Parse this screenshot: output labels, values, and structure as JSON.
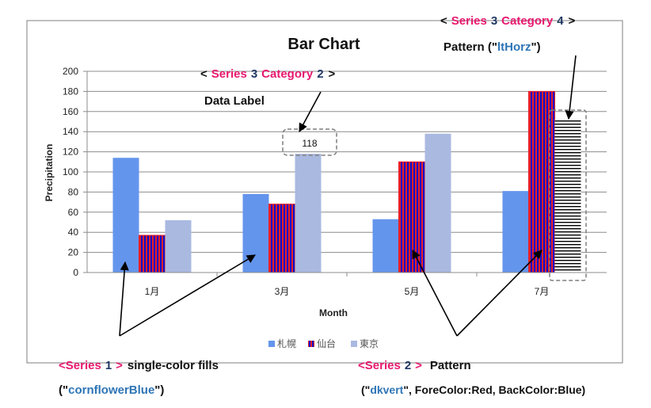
{
  "chart_data": {
    "type": "bar",
    "title": "Bar Chart",
    "xlabel": "Month",
    "ylabel": "Precipitation",
    "categories": [
      "1月",
      "3月",
      "5月",
      "7月"
    ],
    "ylim": [
      0,
      200
    ],
    "yticks": [
      0,
      20,
      40,
      60,
      80,
      100,
      120,
      140,
      160,
      180,
      200
    ],
    "grid": true,
    "legend_position": "bottom",
    "series": [
      {
        "name": "札幌",
        "values": [
          114,
          78,
          53,
          81
        ],
        "fill": "cornflowerBlue",
        "color": "#6495ED"
      },
      {
        "name": "仙台",
        "values": [
          37,
          68,
          110,
          180
        ],
        "fill": "pattern dkvert",
        "fore_color": "#FF0000",
        "back_color": "#0000FF"
      },
      {
        "name": "東京",
        "values": [
          52,
          118,
          138,
          152
        ],
        "fill": "solid",
        "color": "#AAB9E0"
      }
    ],
    "data_labels": [
      {
        "series": 3,
        "category": 2,
        "text": "118"
      }
    ],
    "special_points": [
      {
        "series": 3,
        "category": 4,
        "fill": "pattern ltHorz",
        "fore_color": "#000000",
        "back_color": "#FFFFFF"
      }
    ]
  },
  "annotations": {
    "series3_cat4": {
      "lt": "<",
      "series": "Series",
      "snum": "3",
      "category": "Category",
      "cnum": "4",
      "gt": ">",
      "line2": "Pattern (\"",
      "pattern": "ltHorz",
      "line2_end": "\")"
    },
    "series3_cat2": {
      "lt": "<",
      "series": "Series",
      "snum": "3",
      "category": "Category",
      "cnum": "2",
      "gt": ">",
      "line2": "Data Label"
    },
    "series1": {
      "lt": "<",
      "series": "Series",
      "snum": "1",
      "gt": ">",
      "text": "single-color fills",
      "open": "(\"",
      "fill_name": "cornflowerBlue",
      "close": "\")"
    },
    "series2": {
      "lt": "<",
      "series": "Series",
      "snum": "2",
      "gt": ">",
      "text": "Pattern",
      "open": "(\"",
      "fill_name": "dkvert",
      "rest": "\", ForeColor:Red, BackColor:Blue)"
    }
  },
  "colors": {
    "accent_pink": "#E8186F",
    "accent_blue": "#1F4E9E",
    "navy": "#1F3864",
    "grid": "#8C8C8C"
  }
}
